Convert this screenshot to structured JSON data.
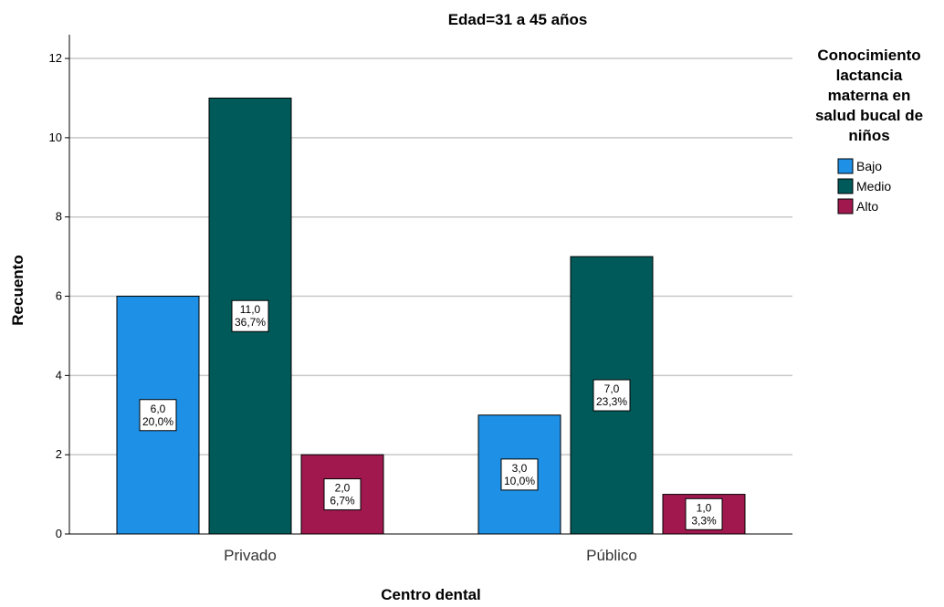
{
  "chart_data": {
    "type": "bar",
    "title": "Edad=31 a 45 años",
    "xlabel": "Centro dental",
    "ylabel": "Recuento",
    "ylim": [
      0,
      12.6
    ],
    "yticks": [
      0,
      2,
      4,
      6,
      8,
      10,
      12
    ],
    "ytick_labels": [
      "0",
      "2",
      "4",
      "6",
      "8",
      "10",
      "12"
    ],
    "categories": [
      "Privado",
      "Público"
    ],
    "series": [
      {
        "name": "Bajo",
        "values": [
          6,
          3
        ],
        "labels": [
          "6,0",
          "3,0"
        ],
        "percents": [
          "20,0%",
          "10,0%"
        ],
        "color": "#1e90e6"
      },
      {
        "name": "Medio",
        "values": [
          11,
          7
        ],
        "labels": [
          "11,0",
          "7,0"
        ],
        "percents": [
          "36,7%",
          "23,3%"
        ],
        "color": "#005a5a"
      },
      {
        "name": "Alto",
        "values": [
          2,
          1
        ],
        "labels": [
          "2,0",
          "1,0"
        ],
        "percents": [
          "6,7%",
          "3,3%"
        ],
        "color": "#a0184e"
      }
    ],
    "legend": {
      "title_lines": [
        "Conocimiento",
        "lactancia",
        "materna en",
        "salud bucal de",
        "niños"
      ],
      "placement": "right"
    },
    "grid": true
  }
}
